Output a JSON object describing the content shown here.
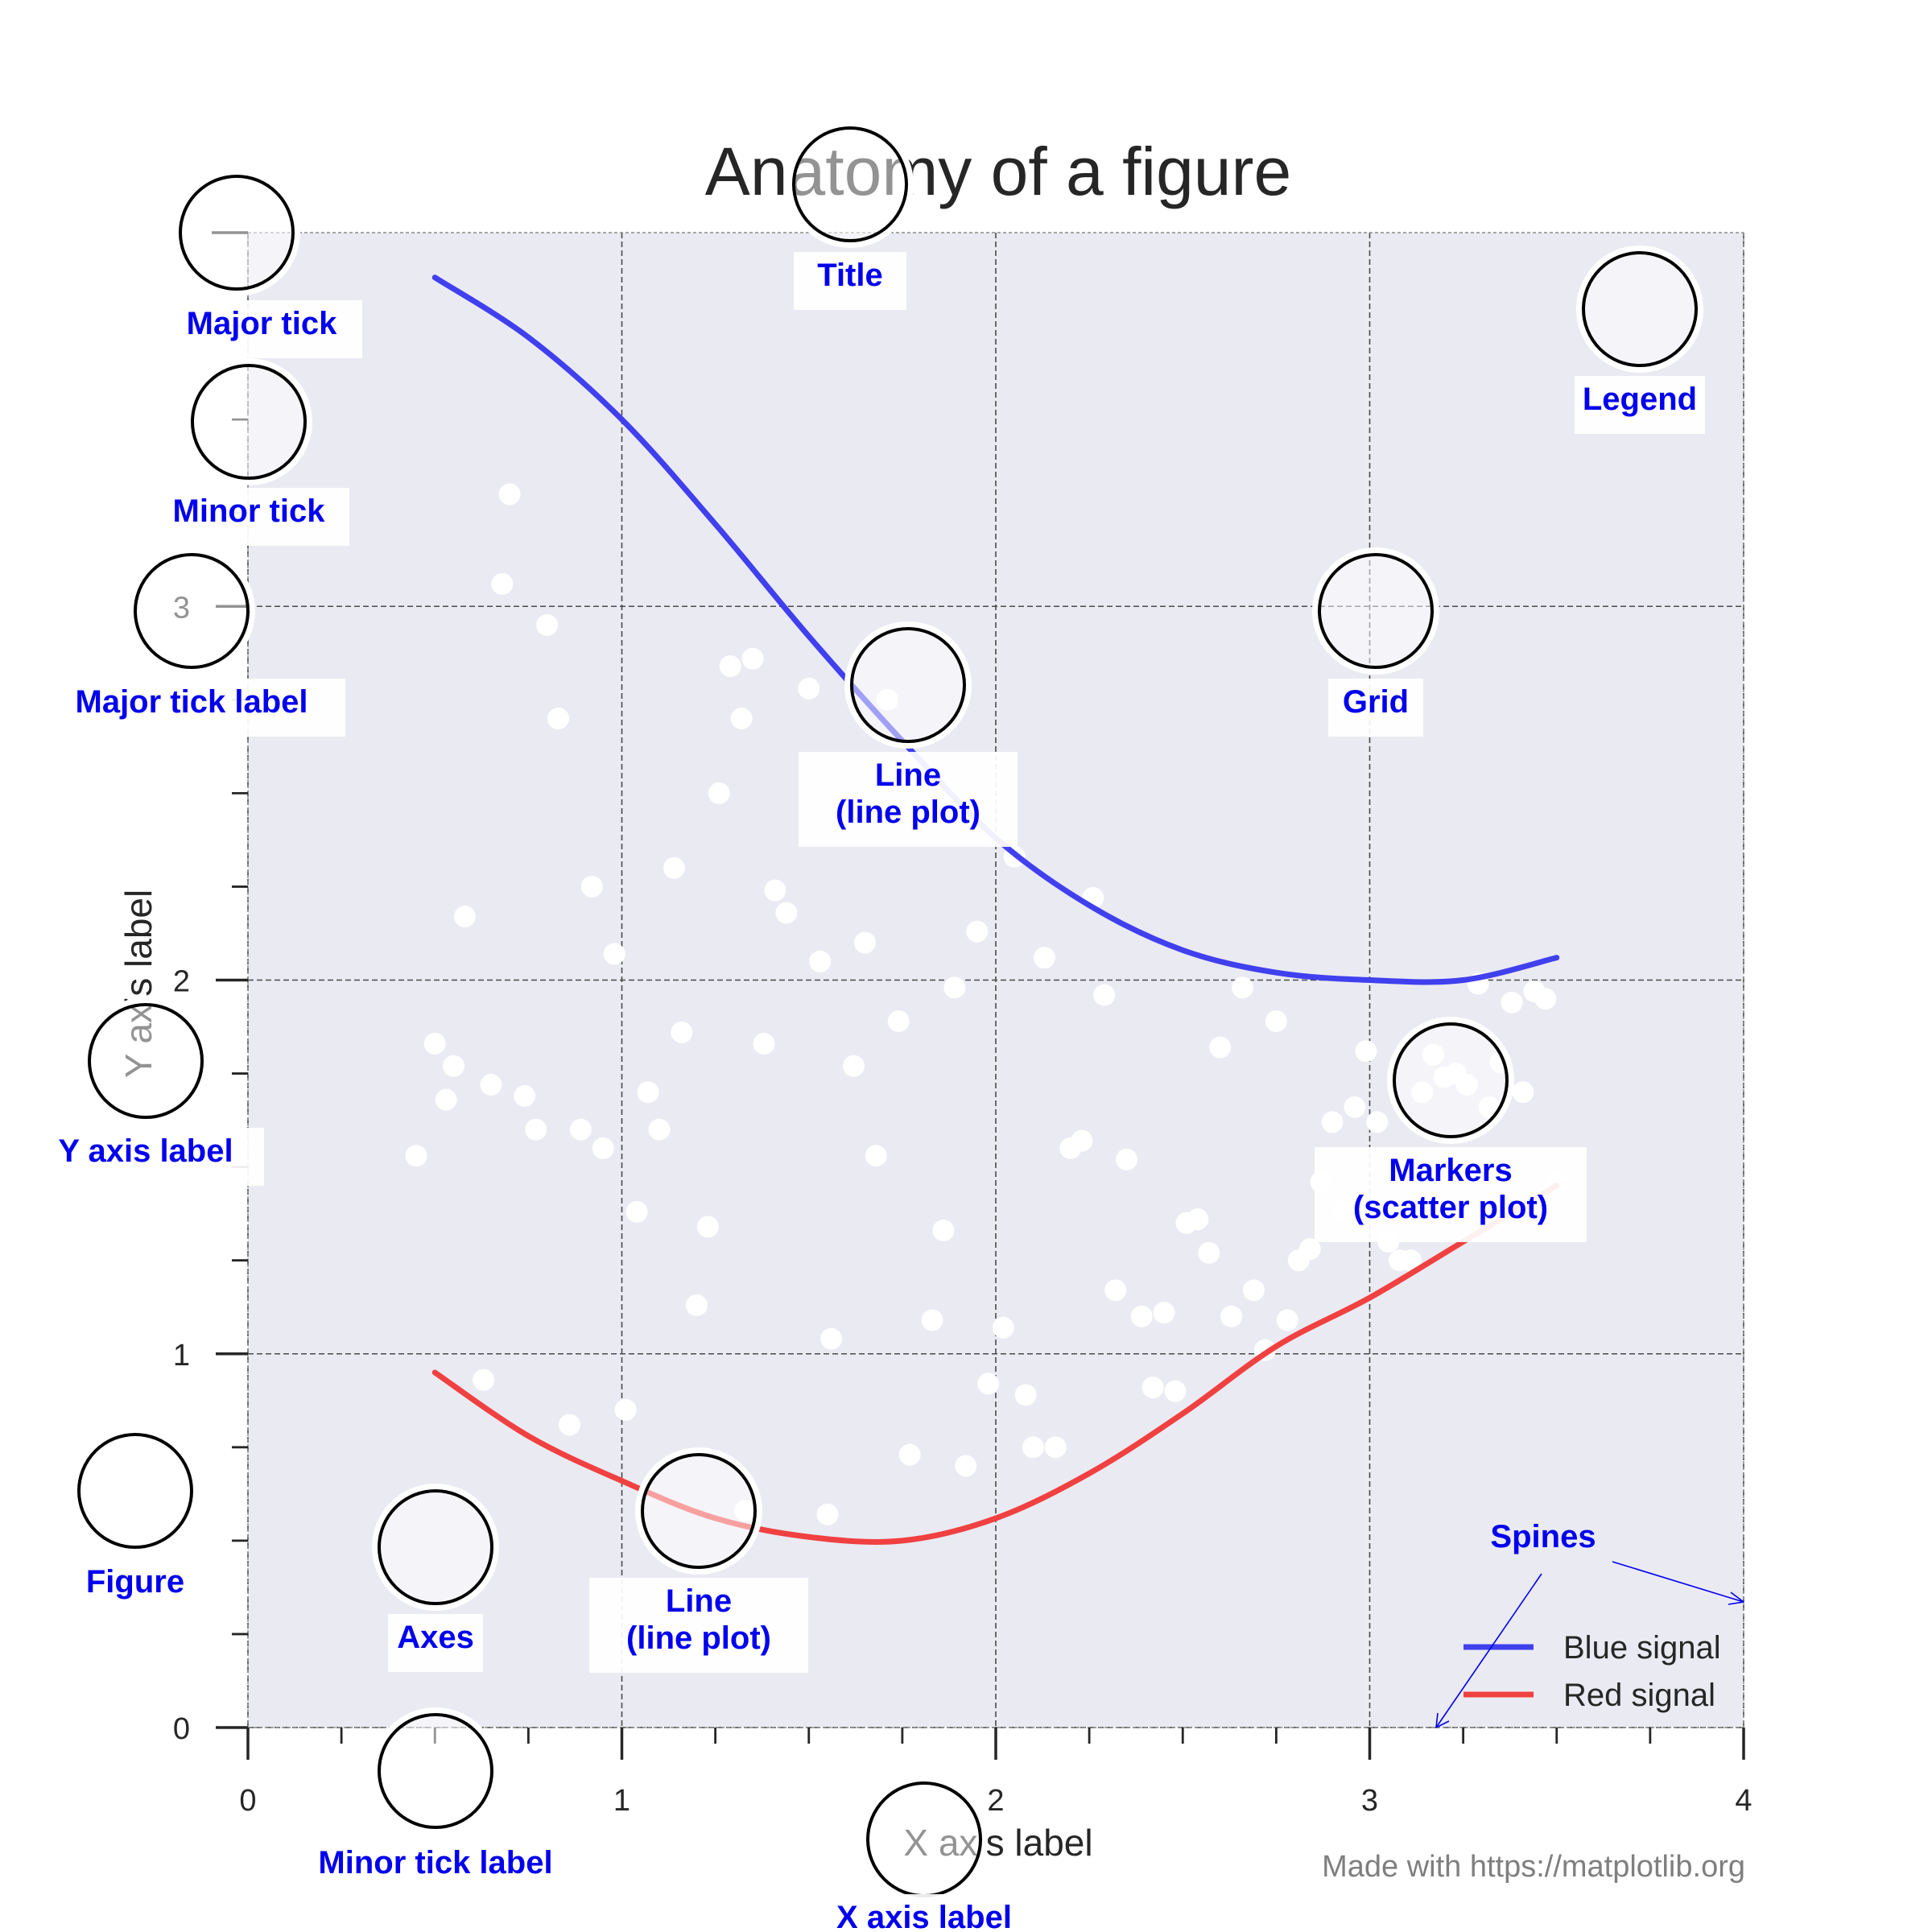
{
  "chart_data": {
    "type": "line",
    "title": "Anatomy of a figure",
    "xlabel": "X axis label",
    "ylabel": "Y axis label",
    "xlim": [
      0,
      4
    ],
    "ylim": [
      0,
      4
    ],
    "grid": true,
    "legend_placement": "bottom-right",
    "x_major_ticks": [
      "0",
      "1",
      "2",
      "3",
      "4"
    ],
    "y_major_ticks": [
      "0",
      "1",
      "2",
      "3"
    ],
    "x_minor_ticks": [
      0.25,
      0.5,
      0.75,
      1.25,
      1.5,
      1.75,
      2.25,
      2.5,
      2.75,
      3.25,
      3.5,
      3.75
    ],
    "y_minor_ticks": [
      0.25,
      0.5,
      0.75,
      1.25,
      1.5,
      1.75,
      2.25,
      2.5,
      2.75,
      3.25,
      3.5,
      3.75
    ],
    "colors": {
      "axes_bg": "#eaeaf2",
      "blue": "#4040ee",
      "red": "#f04040",
      "annotation": "#0000ee"
    },
    "series": [
      {
        "name": "Blue signal",
        "color": "#4040ee",
        "kind": "line",
        "x": [
          0.5,
          0.75,
          1.0,
          1.25,
          1.5,
          1.75,
          2.0,
          2.25,
          2.5,
          2.75,
          3.0,
          3.25,
          3.5
        ],
        "y": [
          3.88,
          3.72,
          3.5,
          3.22,
          2.92,
          2.64,
          2.38,
          2.2,
          2.08,
          2.02,
          2.0,
          2.0,
          2.06
        ]
      },
      {
        "name": "Red signal",
        "color": "#f04040",
        "kind": "line",
        "x": [
          0.5,
          0.75,
          1.0,
          1.25,
          1.5,
          1.75,
          2.0,
          2.25,
          2.5,
          2.75,
          3.0,
          3.25,
          3.5
        ],
        "y": [
          0.95,
          0.78,
          0.66,
          0.56,
          0.51,
          0.5,
          0.56,
          0.68,
          0.84,
          1.02,
          1.15,
          1.3,
          1.45
        ]
      },
      {
        "name": "",
        "kind": "scatter",
        "color": "#ffffff",
        "points": [
          [
            0.7,
            3.3
          ],
          [
            0.68,
            3.06
          ],
          [
            0.8,
            2.95
          ],
          [
            0.83,
            2.7
          ],
          [
            0.58,
            2.17
          ],
          [
            0.92,
            2.25
          ],
          [
            0.98,
            2.07
          ],
          [
            0.5,
            1.83
          ],
          [
            0.55,
            1.77
          ],
          [
            0.53,
            1.68
          ],
          [
            0.65,
            1.72
          ],
          [
            0.74,
            1.69
          ],
          [
            0.77,
            1.6
          ],
          [
            0.89,
            1.6
          ],
          [
            0.95,
            1.55
          ],
          [
            1.04,
            1.38
          ],
          [
            1.07,
            1.7
          ],
          [
            1.1,
            1.6
          ],
          [
            1.14,
            2.3
          ],
          [
            1.16,
            1.86
          ],
          [
            1.2,
            1.13
          ],
          [
            1.23,
            1.34
          ],
          [
            1.26,
            2.5
          ],
          [
            1.29,
            2.84
          ],
          [
            1.32,
            2.7
          ],
          [
            1.35,
            2.86
          ],
          [
            1.38,
            1.83
          ],
          [
            1.41,
            2.24
          ],
          [
            1.44,
            2.18
          ],
          [
            1.5,
            2.78
          ],
          [
            1.53,
            2.05
          ],
          [
            1.56,
            1.04
          ],
          [
            1.62,
            1.77
          ],
          [
            1.65,
            2.1
          ],
          [
            1.68,
            1.53
          ],
          [
            1.71,
            2.75
          ],
          [
            1.74,
            1.89
          ],
          [
            1.77,
            0.73
          ],
          [
            1.8,
            2.45
          ],
          [
            1.83,
            1.09
          ],
          [
            1.86,
            1.33
          ],
          [
            1.89,
            1.98
          ],
          [
            1.92,
            0.7
          ],
          [
            1.95,
            2.13
          ],
          [
            1.98,
            0.92
          ],
          [
            2.02,
            1.07
          ],
          [
            2.05,
            2.33
          ],
          [
            2.08,
            0.89
          ],
          [
            2.1,
            0.75
          ],
          [
            2.13,
            2.06
          ],
          [
            2.16,
            0.75
          ],
          [
            2.2,
            1.55
          ],
          [
            2.23,
            1.57
          ],
          [
            2.26,
            2.22
          ],
          [
            2.29,
            1.96
          ],
          [
            2.32,
            1.17
          ],
          [
            2.35,
            1.52
          ],
          [
            2.39,
            1.1
          ],
          [
            2.42,
            0.91
          ],
          [
            2.45,
            1.11
          ],
          [
            2.48,
            0.9
          ],
          [
            2.51,
            1.35
          ],
          [
            2.54,
            1.36
          ],
          [
            2.57,
            1.27
          ],
          [
            2.6,
            1.82
          ],
          [
            2.63,
            1.1
          ],
          [
            2.66,
            1.98
          ],
          [
            2.69,
            1.17
          ],
          [
            2.72,
            1.01
          ],
          [
            2.75,
            1.89
          ],
          [
            2.78,
            1.09
          ],
          [
            2.81,
            1.25
          ],
          [
            2.84,
            1.28
          ],
          [
            2.87,
            1.46
          ],
          [
            2.9,
            1.62
          ],
          [
            2.93,
            1.38
          ],
          [
            2.96,
            1.66
          ],
          [
            2.99,
            1.81
          ],
          [
            3.02,
            1.62
          ],
          [
            3.05,
            1.3
          ],
          [
            3.08,
            1.25
          ],
          [
            3.11,
            1.25
          ],
          [
            3.14,
            1.7
          ],
          [
            3.17,
            1.8
          ],
          [
            3.2,
            1.74
          ],
          [
            3.23,
            1.75
          ],
          [
            3.26,
            1.72
          ],
          [
            3.29,
            1.99
          ],
          [
            3.32,
            1.66
          ],
          [
            3.35,
            1.78
          ],
          [
            3.38,
            1.94
          ],
          [
            3.41,
            1.7
          ],
          [
            3.44,
            1.97
          ],
          [
            3.47,
            1.95
          ],
          [
            3.5,
            1.46
          ],
          [
            0.45,
            1.53
          ],
          [
            1.55,
            0.57
          ],
          [
            1.33,
            0.58
          ],
          [
            0.63,
            0.93
          ],
          [
            0.86,
            0.81
          ],
          [
            1.01,
            0.85
          ]
        ]
      }
    ],
    "legend": [
      "Blue signal",
      "Red signal"
    ],
    "annotations": {
      "title": "Title",
      "major_tick": "Major tick",
      "minor_tick": "Minor tick",
      "major_tick_label": "Major tick label",
      "line_plot": "Line",
      "line_plot_sub": "(line plot)",
      "grid": "Grid",
      "legend": "Legend",
      "y_axis_label": "Y axis label",
      "markers": "Markers",
      "markers_sub": "(scatter plot)",
      "figure": "Figure",
      "axes": "Axes",
      "spines": "Spines",
      "minor_tick_label": "Minor tick label",
      "x_axis_label": "X axis label"
    },
    "footer": "Made with https://matplotlib.org"
  }
}
